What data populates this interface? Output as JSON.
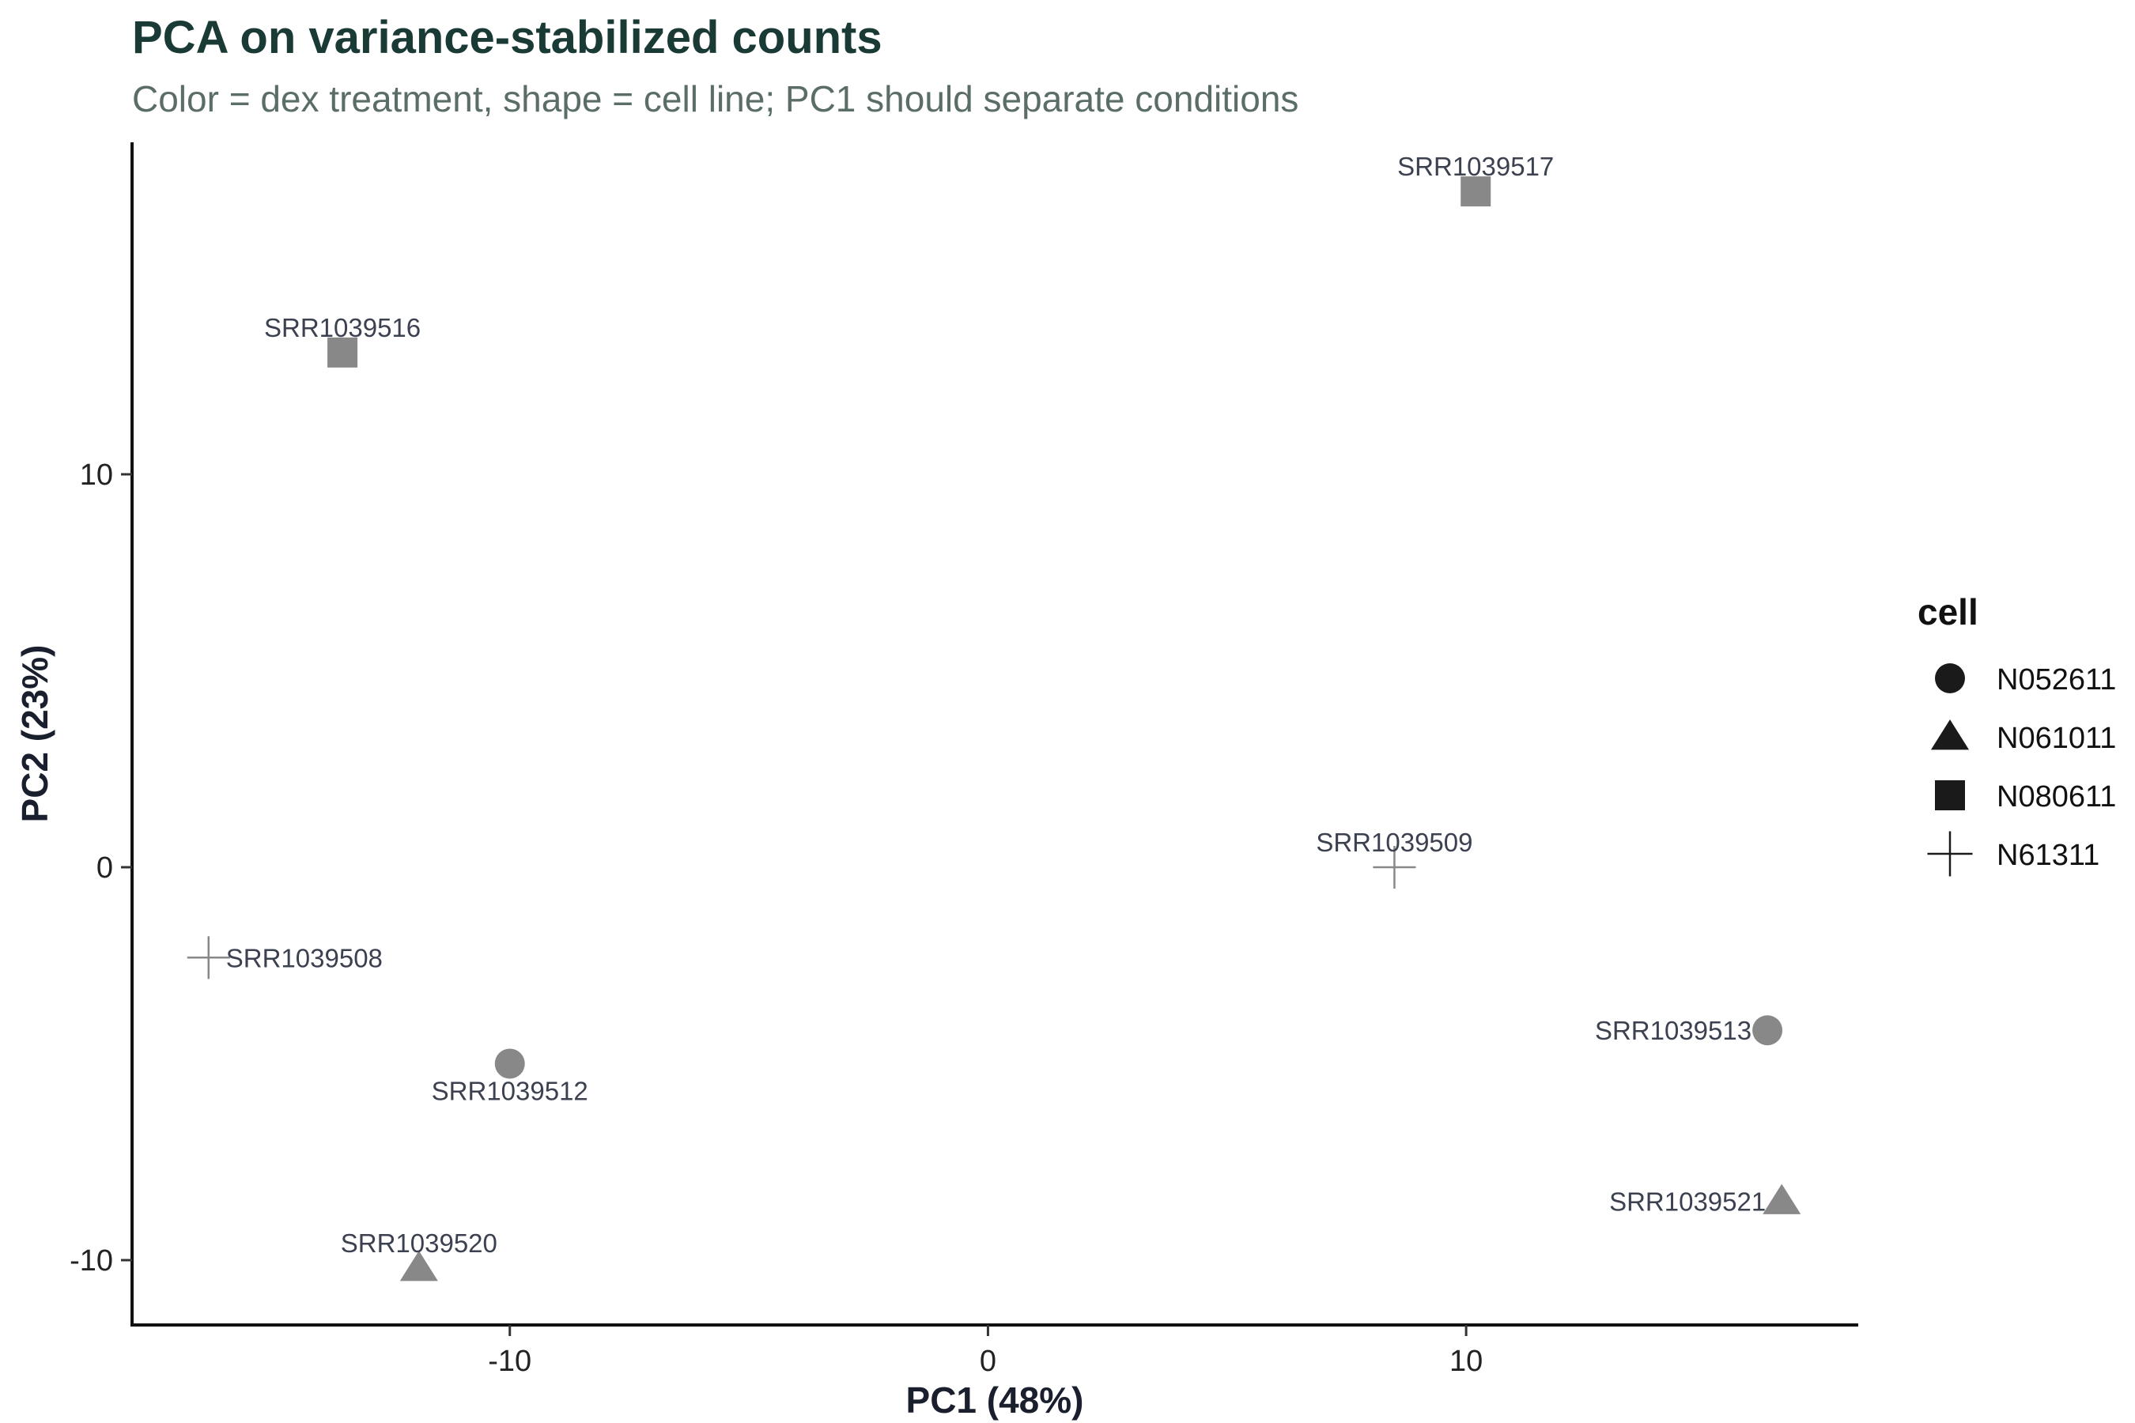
{
  "chart_data": {
    "type": "scatter",
    "title": "PCA on variance-stabilized counts",
    "subtitle": "Color = dex treatment, shape = cell line; PC1 should separate conditions",
    "xlabel": "PC1 (48%)",
    "ylabel": "PC2 (23%)",
    "xlim": [
      -17.9,
      18.2
    ],
    "ylim": [
      -11.65,
      18.45
    ],
    "x_ticks": [
      -10,
      0,
      10
    ],
    "y_ticks": [
      -10,
      0,
      10
    ],
    "grid": false,
    "point_color": "#888888",
    "legend": {
      "title": "cell",
      "placement": "right",
      "entries": [
        {
          "label": "N052611",
          "shape": "circle"
        },
        {
          "label": "N061011",
          "shape": "triangle"
        },
        {
          "label": "N080611",
          "shape": "square"
        },
        {
          "label": "N61311",
          "shape": "cross"
        }
      ]
    },
    "points": [
      {
        "sample": "SRR1039508",
        "cell": "N61311",
        "shape": "cross",
        "x": -16.3,
        "y": -2.3,
        "label_pos": "right"
      },
      {
        "sample": "SRR1039509",
        "cell": "N61311",
        "shape": "cross",
        "x": 8.5,
        "y": 0.0,
        "label_pos": "top"
      },
      {
        "sample": "SRR1039512",
        "cell": "N052611",
        "shape": "circle",
        "x": -10.0,
        "y": -5.0,
        "label_pos": "bottom"
      },
      {
        "sample": "SRR1039513",
        "cell": "N052611",
        "shape": "circle",
        "x": 16.3,
        "y": -4.15,
        "label_pos": "left"
      },
      {
        "sample": "SRR1039516",
        "cell": "N080611",
        "shape": "square",
        "x": -13.5,
        "y": 13.1,
        "label_pos": "top"
      },
      {
        "sample": "SRR1039517",
        "cell": "N080611",
        "shape": "square",
        "x": 10.2,
        "y": 17.2,
        "label_pos": "top"
      },
      {
        "sample": "SRR1039520",
        "cell": "N061011",
        "shape": "triangle",
        "x": -11.9,
        "y": -10.2,
        "label_pos": "top"
      },
      {
        "sample": "SRR1039521",
        "cell": "N061011",
        "shape": "triangle",
        "x": 16.6,
        "y": -8.5,
        "label_pos": "left"
      }
    ]
  }
}
